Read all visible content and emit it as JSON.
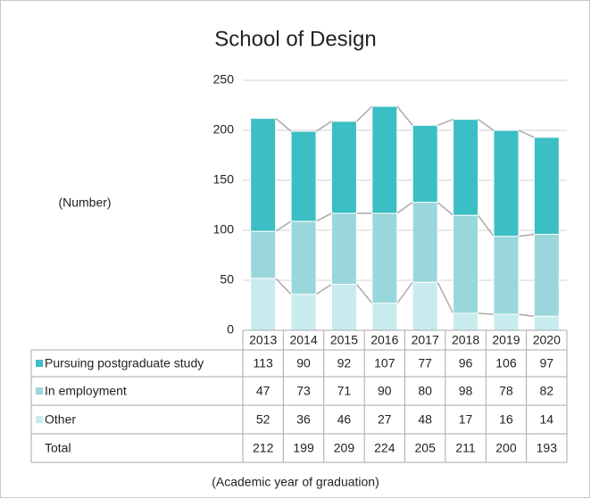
{
  "chart_data": {
    "type": "stacked_bar",
    "title": "School of Design",
    "y_label": "(Number)",
    "x_label": "(Academic year of graduation)",
    "categories": [
      "2013",
      "2014",
      "2015",
      "2016",
      "2017",
      "2018",
      "2019",
      "2020"
    ],
    "series": [
      {
        "name": "Pursuing postgraduate study",
        "color": "#3bbfc4",
        "values": [
          113,
          90,
          92,
          107,
          77,
          96,
          106,
          97
        ]
      },
      {
        "name": "In employment",
        "color": "#9ad7dc",
        "values": [
          47,
          73,
          71,
          90,
          80,
          98,
          78,
          82
        ]
      },
      {
        "name": "Other",
        "color": "#c8ebee",
        "values": [
          52,
          36,
          46,
          27,
          48,
          17,
          16,
          14
        ]
      }
    ],
    "total_label": "Total",
    "totals": [
      212,
      199,
      209,
      224,
      205,
      211,
      200,
      193
    ],
    "ylim": [
      0,
      250
    ],
    "yticks": [
      0,
      50,
      100,
      150,
      200,
      250
    ],
    "grid": true
  }
}
